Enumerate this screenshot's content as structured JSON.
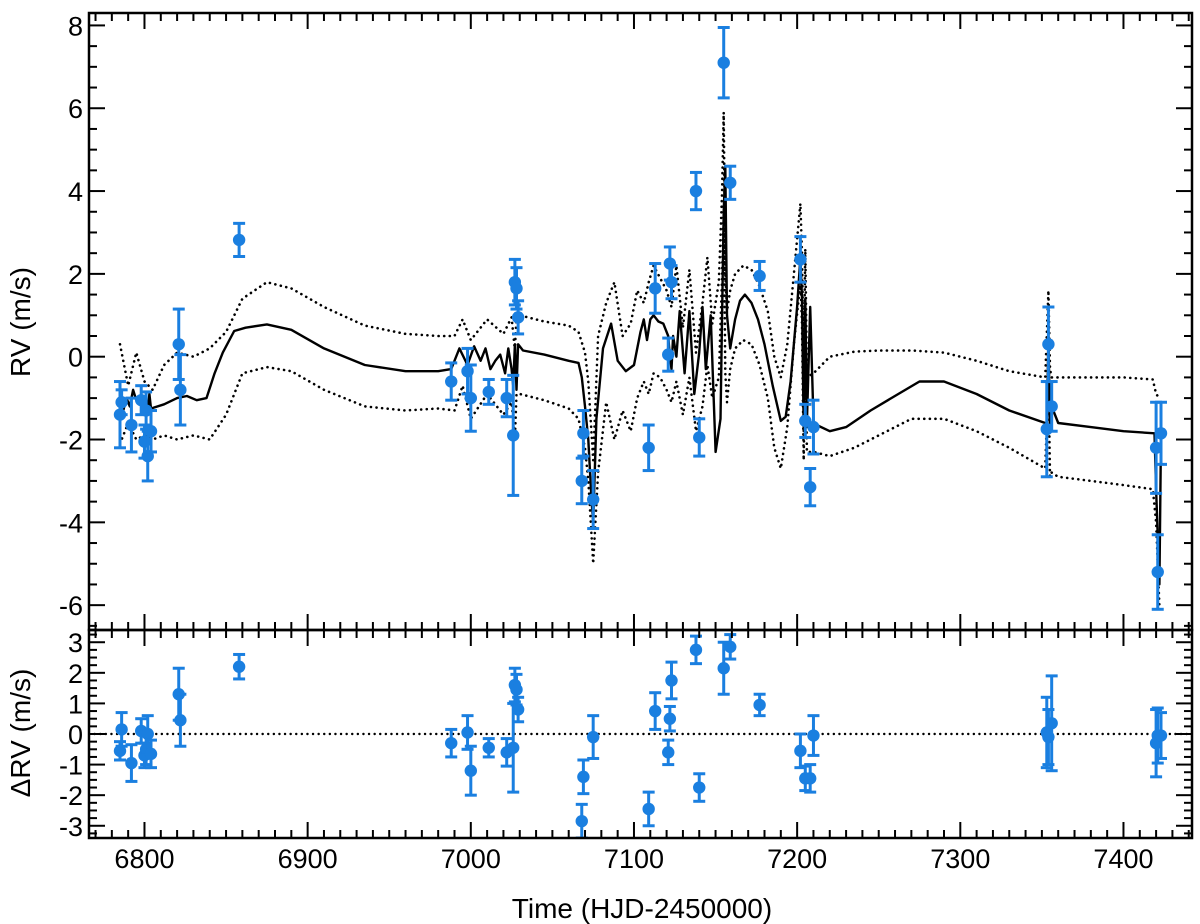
{
  "chart_data": {
    "type": "scatter",
    "xlabel": "Time (HJD-2450000)",
    "xlim": [
      6766,
      7442
    ],
    "x_ticks": [
      6800,
      6900,
      7000,
      7100,
      7200,
      7300,
      7400
    ],
    "point_color": "#1a7fe0",
    "line_color": "#000000",
    "top_panel": {
      "ylabel": "RV (m/s)",
      "ylim": [
        -6.6,
        8.3
      ],
      "y_ticks": [
        -6,
        -4,
        -2,
        0,
        2,
        4,
        6,
        8
      ],
      "points": [
        {
          "x": 6785,
          "y": -1.4,
          "err": 0.8
        },
        {
          "x": 6786,
          "y": -1.1,
          "err": 0.3
        },
        {
          "x": 6792,
          "y": -1.65,
          "err": 0.65
        },
        {
          "x": 6798,
          "y": -1.05,
          "err": 0.35
        },
        {
          "x": 6800,
          "y": -2.05,
          "err": 0.4
        },
        {
          "x": 6801,
          "y": -1.3,
          "err": 0.45
        },
        {
          "x": 6802,
          "y": -2.4,
          "err": 0.6
        },
        {
          "x": 6804,
          "y": -1.8,
          "err": 0.5
        },
        {
          "x": 6821,
          "y": 0.3,
          "err": 0.85
        },
        {
          "x": 6822,
          "y": -0.8,
          "err": 0.85
        },
        {
          "x": 6858,
          "y": 2.82,
          "err": 0.4
        },
        {
          "x": 6988,
          "y": -0.6,
          "err": 0.45
        },
        {
          "x": 6998,
          "y": -0.35,
          "err": 0.55
        },
        {
          "x": 7000,
          "y": -1.0,
          "err": 0.8
        },
        {
          "x": 7011,
          "y": -0.85,
          "err": 0.3
        },
        {
          "x": 7022,
          "y": -1.0,
          "err": 0.45
        },
        {
          "x": 7026,
          "y": -1.9,
          "err": 1.45
        },
        {
          "x": 7027,
          "y": 1.8,
          "err": 0.55
        },
        {
          "x": 7028,
          "y": 1.65,
          "err": 0.5
        },
        {
          "x": 7029,
          "y": 0.95,
          "err": 0.4
        },
        {
          "x": 7068,
          "y": -3.0,
          "err": 0.55
        },
        {
          "x": 7069,
          "y": -1.85,
          "err": 0.55
        },
        {
          "x": 7075,
          "y": -3.45,
          "err": 0.7
        },
        {
          "x": 7109,
          "y": -2.2,
          "err": 0.55
        },
        {
          "x": 7113,
          "y": 1.65,
          "err": 0.6
        },
        {
          "x": 7121,
          "y": 0.05,
          "err": 0.4
        },
        {
          "x": 7122,
          "y": 2.25,
          "err": 0.4
        },
        {
          "x": 7123,
          "y": 1.8,
          "err": 0.4
        },
        {
          "x": 7138,
          "y": 4.0,
          "err": 0.45
        },
        {
          "x": 7140,
          "y": -1.95,
          "err": 0.45
        },
        {
          "x": 7155,
          "y": 7.1,
          "err": 0.85
        },
        {
          "x": 7159,
          "y": 4.2,
          "err": 0.4
        },
        {
          "x": 7177,
          "y": 1.95,
          "err": 0.35
        },
        {
          "x": 7202,
          "y": 2.35,
          "err": 0.55
        },
        {
          "x": 7205,
          "y": -1.55,
          "err": 0.4
        },
        {
          "x": 7208,
          "y": -3.15,
          "err": 0.45
        },
        {
          "x": 7210,
          "y": -1.7,
          "err": 0.65
        },
        {
          "x": 7353,
          "y": -1.75,
          "err": 1.15
        },
        {
          "x": 7354,
          "y": 0.3,
          "err": 0.9
        },
        {
          "x": 7356,
          "y": -1.2,
          "err": 0.6
        },
        {
          "x": 7420,
          "y": -2.2,
          "err": 1.1
        },
        {
          "x": 7421,
          "y": -5.2,
          "err": 0.9
        },
        {
          "x": 7423,
          "y": -1.85,
          "err": 0.75
        }
      ],
      "model": {
        "x": [
          6785,
          6787,
          6789,
          6791,
          6793,
          6795,
          6797,
          6799,
          6801,
          6802,
          6803,
          6804,
          6812,
          6820,
          6826,
          6832,
          6838,
          6843,
          6848,
          6855,
          6862,
          6875,
          6890,
          6910,
          6935,
          6960,
          6980,
          6988,
          6993,
          6998,
          7002,
          7006,
          7009,
          7012,
          7015,
          7018,
          7021,
          7023,
          7025,
          7026,
          7027,
          7028,
          7029,
          7032,
          7045,
          7060,
          7066,
          7068,
          7070,
          7072,
          7074,
          7075,
          7077,
          7081,
          7086,
          7090,
          7095,
          7100,
          7104,
          7106,
          7108,
          7110,
          7112,
          7115,
          7118,
          7121,
          7122,
          7123,
          7124,
          7126,
          7128,
          7131,
          7134,
          7137,
          7140,
          7142,
          7144,
          7147,
          7150,
          7153,
          7155,
          7156,
          7157,
          7159,
          7162,
          7165,
          7168,
          7172,
          7176,
          7180,
          7185,
          7190,
          7193,
          7196,
          7200,
          7202,
          7203,
          7204,
          7205,
          7206,
          7208,
          7210,
          7212,
          7220,
          7230,
          7245,
          7262,
          7275,
          7290,
          7310,
          7330,
          7352,
          7353,
          7354,
          7355,
          7356,
          7360,
          7380,
          7400,
          7419,
          7420,
          7421,
          7422,
          7423
        ],
        "y": [
          -1.1,
          -1.3,
          -1.0,
          -1.2,
          -0.8,
          -1.05,
          -1.0,
          -1.3,
          -1.1,
          -1.3,
          -0.9,
          -1.25,
          -1.15,
          -1.0,
          -0.95,
          -1.05,
          -1.0,
          -0.4,
          0.1,
          0.62,
          0.7,
          0.78,
          0.65,
          0.2,
          -0.2,
          -0.35,
          -0.35,
          -0.3,
          0.2,
          -0.2,
          0.25,
          -0.1,
          0.2,
          -0.3,
          -0.1,
          0.05,
          -0.4,
          0.2,
          -0.3,
          -0.7,
          0.3,
          -0.8,
          0.3,
          0.15,
          0.05,
          -0.1,
          -0.15,
          -0.5,
          -1.2,
          -2.0,
          -3.5,
          -4.0,
          -1.5,
          0.2,
          0.8,
          -0.1,
          -0.35,
          -0.2,
          0.6,
          0.9,
          0.4,
          0.9,
          1.0,
          0.85,
          0.8,
          0.5,
          0.0,
          -0.3,
          0.5,
          0.0,
          1.1,
          -0.4,
          1.1,
          -0.9,
          0.1,
          1.2,
          -0.3,
          1.0,
          -2.3,
          -1.5,
          3.5,
          4.6,
          1.0,
          0.2,
          0.9,
          1.35,
          1.5,
          1.3,
          0.9,
          0.3,
          -0.7,
          -1.55,
          -1.45,
          -0.6,
          1.2,
          2.4,
          1.4,
          -1.8,
          1.4,
          -1.6,
          1.2,
          -1.55,
          -1.65,
          -1.8,
          -1.7,
          -1.3,
          -0.9,
          -0.6,
          -0.6,
          -0.9,
          -1.3,
          -1.6,
          -1.8,
          0.5,
          -1.7,
          -1.2,
          -1.6,
          -1.7,
          -1.8,
          -1.85,
          -3.2,
          -4.3,
          -5.5,
          -1.9
        ]
      },
      "model_upper": {
        "x": [
          6785,
          6790,
          6795,
          6800,
          6805,
          6812,
          6820,
          6830,
          6840,
          6850,
          6860,
          6875,
          6890,
          6910,
          6935,
          6960,
          6980,
          6990,
          6995,
          7000,
          7010,
          7020,
          7025,
          7027,
          7028,
          7030,
          7045,
          7060,
          7066,
          7070,
          7072,
          7075,
          7078,
          7083,
          7088,
          7093,
          7098,
          7102,
          7106,
          7109,
          7112,
          7116,
          7120,
          7123,
          7126,
          7130,
          7134,
          7138,
          7142,
          7145,
          7148,
          7152,
          7154,
          7155,
          7156,
          7157,
          7159,
          7162,
          7167,
          7172,
          7177,
          7182,
          7186,
          7190,
          7194,
          7198,
          7202,
          7203,
          7204,
          7205,
          7206,
          7210,
          7220,
          7235,
          7250,
          7270,
          7290,
          7310,
          7330,
          7352,
          7354,
          7355,
          7356,
          7360,
          7380,
          7400,
          7418,
          7420,
          7422
        ],
        "y": [
          0.3,
          -0.7,
          0.1,
          -0.6,
          -0.8,
          -0.2,
          0.1,
          0.0,
          0.2,
          0.6,
          1.4,
          1.8,
          1.65,
          1.2,
          0.75,
          0.55,
          0.5,
          0.5,
          0.9,
          0.4,
          0.9,
          0.55,
          0.95,
          0.15,
          1.0,
          1.0,
          0.85,
          0.75,
          0.6,
          0.1,
          -0.6,
          -2.5,
          0.5,
          1.3,
          1.8,
          0.5,
          0.8,
          1.6,
          1.3,
          1.8,
          2.2,
          1.9,
          1.6,
          1.2,
          2.2,
          0.7,
          2.1,
          0.1,
          1.3,
          2.4,
          0.8,
          1.8,
          4.0,
          5.9,
          2.0,
          1.1,
          1.6,
          2.0,
          2.2,
          2.1,
          1.7,
          1.1,
          0.0,
          -0.5,
          0.3,
          2.0,
          3.7,
          2.5,
          -0.3,
          2.6,
          -0.5,
          -0.4,
          0.0,
          0.12,
          0.15,
          0.15,
          0.1,
          -0.1,
          -0.35,
          -0.5,
          1.6,
          -0.3,
          -0.5,
          -0.5,
          -0.5,
          -0.5,
          -0.55,
          -0.9,
          -1.0
        ]
      },
      "model_lower": {
        "x": [
          6785,
          6790,
          6795,
          6800,
          6805,
          6812,
          6820,
          6830,
          6840,
          6850,
          6860,
          6875,
          6890,
          6910,
          6935,
          6960,
          6980,
          6990,
          6995,
          7000,
          7010,
          7020,
          7025,
          7027,
          7028,
          7030,
          7045,
          7060,
          7066,
          7070,
          7072,
          7075,
          7078,
          7083,
          7088,
          7093,
          7098,
          7102,
          7106,
          7109,
          7112,
          7116,
          7120,
          7123,
          7126,
          7130,
          7134,
          7138,
          7142,
          7145,
          7148,
          7152,
          7154,
          7155,
          7156,
          7157,
          7159,
          7162,
          7167,
          7172,
          7177,
          7182,
          7186,
          7190,
          7194,
          7198,
          7202,
          7203,
          7204,
          7205,
          7206,
          7210,
          7220,
          7235,
          7250,
          7270,
          7290,
          7310,
          7330,
          7352,
          7354,
          7355,
          7356,
          7360,
          7380,
          7400,
          7418,
          7420,
          7422
        ],
        "y": [
          -2.1,
          -1.6,
          -2.0,
          -1.9,
          -2.0,
          -1.9,
          -2.0,
          -1.9,
          -2.0,
          -1.4,
          -0.4,
          -0.25,
          -0.35,
          -0.8,
          -1.2,
          -1.3,
          -1.25,
          -1.3,
          -0.7,
          -1.5,
          -0.9,
          -1.4,
          -1.1,
          -2.0,
          -0.9,
          -0.9,
          -1.05,
          -1.25,
          -1.5,
          -2.2,
          -3.0,
          -5.0,
          -2.8,
          -1.1,
          -2.0,
          -1.3,
          -1.8,
          -1.0,
          -0.6,
          -0.9,
          -0.4,
          -0.5,
          -0.8,
          -1.1,
          -0.6,
          -1.4,
          -0.5,
          -1.8,
          -1.2,
          -0.2,
          -1.0,
          -0.5,
          2.0,
          3.7,
          -0.4,
          -1.1,
          -0.3,
          0.2,
          0.4,
          0.3,
          -0.2,
          -1.0,
          -2.2,
          -2.7,
          -1.7,
          0.3,
          1.8,
          0.8,
          -2.5,
          0.7,
          -2.3,
          -2.3,
          -2.4,
          -2.2,
          -1.9,
          -1.5,
          -1.5,
          -1.8,
          -2.2,
          -2.7,
          -0.4,
          -2.9,
          -2.8,
          -2.9,
          -3.0,
          -3.1,
          -3.2,
          -4.0,
          -6.0
        ]
      }
    },
    "bottom_panel": {
      "ylabel": "ΔRV (m/s)",
      "ylim": [
        -3.4,
        3.4
      ],
      "y_ticks": [
        -3,
        -2,
        -1,
        0,
        1,
        2,
        3
      ],
      "zero_line": 0,
      "points": [
        {
          "x": 6785,
          "y": -0.55,
          "err": 0.3
        },
        {
          "x": 6786,
          "y": 0.15,
          "err": 0.55
        },
        {
          "x": 6792,
          "y": -0.95,
          "err": 0.6
        },
        {
          "x": 6798,
          "y": 0.1,
          "err": 0.4
        },
        {
          "x": 6800,
          "y": -0.7,
          "err": 0.4
        },
        {
          "x": 6801,
          "y": -0.5,
          "err": 0.5
        },
        {
          "x": 6802,
          "y": 0.0,
          "err": 0.6
        },
        {
          "x": 6804,
          "y": -0.65,
          "err": 0.45
        },
        {
          "x": 6821,
          "y": 1.3,
          "err": 0.85
        },
        {
          "x": 6822,
          "y": 0.45,
          "err": 0.85
        },
        {
          "x": 6858,
          "y": 2.2,
          "err": 0.4
        },
        {
          "x": 6988,
          "y": -0.3,
          "err": 0.45
        },
        {
          "x": 6998,
          "y": 0.05,
          "err": 0.55
        },
        {
          "x": 7000,
          "y": -1.2,
          "err": 0.8
        },
        {
          "x": 7011,
          "y": -0.45,
          "err": 0.3
        },
        {
          "x": 7022,
          "y": -0.6,
          "err": 0.45
        },
        {
          "x": 7026,
          "y": -0.45,
          "err": 1.45
        },
        {
          "x": 7027,
          "y": 1.6,
          "err": 0.55
        },
        {
          "x": 7028,
          "y": 1.45,
          "err": 0.5
        },
        {
          "x": 7029,
          "y": 0.8,
          "err": 0.4
        },
        {
          "x": 7068,
          "y": -2.85,
          "err": 0.55
        },
        {
          "x": 7069,
          "y": -1.4,
          "err": 0.55
        },
        {
          "x": 7075,
          "y": -0.1,
          "err": 0.7
        },
        {
          "x": 7109,
          "y": -2.45,
          "err": 0.55
        },
        {
          "x": 7113,
          "y": 0.75,
          "err": 0.6
        },
        {
          "x": 7121,
          "y": -0.6,
          "err": 0.4
        },
        {
          "x": 7122,
          "y": 0.5,
          "err": 0.4
        },
        {
          "x": 7123,
          "y": 1.75,
          "err": 0.6
        },
        {
          "x": 7138,
          "y": 2.75,
          "err": 0.45
        },
        {
          "x": 7140,
          "y": -1.75,
          "err": 0.45
        },
        {
          "x": 7155,
          "y": 2.15,
          "err": 0.85
        },
        {
          "x": 7159,
          "y": 2.85,
          "err": 0.4
        },
        {
          "x": 7177,
          "y": 0.95,
          "err": 0.35
        },
        {
          "x": 7202,
          "y": -0.55,
          "err": 0.55
        },
        {
          "x": 7205,
          "y": -1.45,
          "err": 0.4
        },
        {
          "x": 7208,
          "y": -1.45,
          "err": 0.45
        },
        {
          "x": 7210,
          "y": -0.05,
          "err": 0.65
        },
        {
          "x": 7353,
          "y": 0.05,
          "err": 1.15
        },
        {
          "x": 7354,
          "y": -0.1,
          "err": 0.9
        },
        {
          "x": 7356,
          "y": 0.35,
          "err": 1.55
        },
        {
          "x": 7420,
          "y": -0.3,
          "err": 1.1
        },
        {
          "x": 7421,
          "y": -0.05,
          "err": 0.9
        },
        {
          "x": 7423,
          "y": -0.05,
          "err": 0.75
        }
      ]
    }
  }
}
